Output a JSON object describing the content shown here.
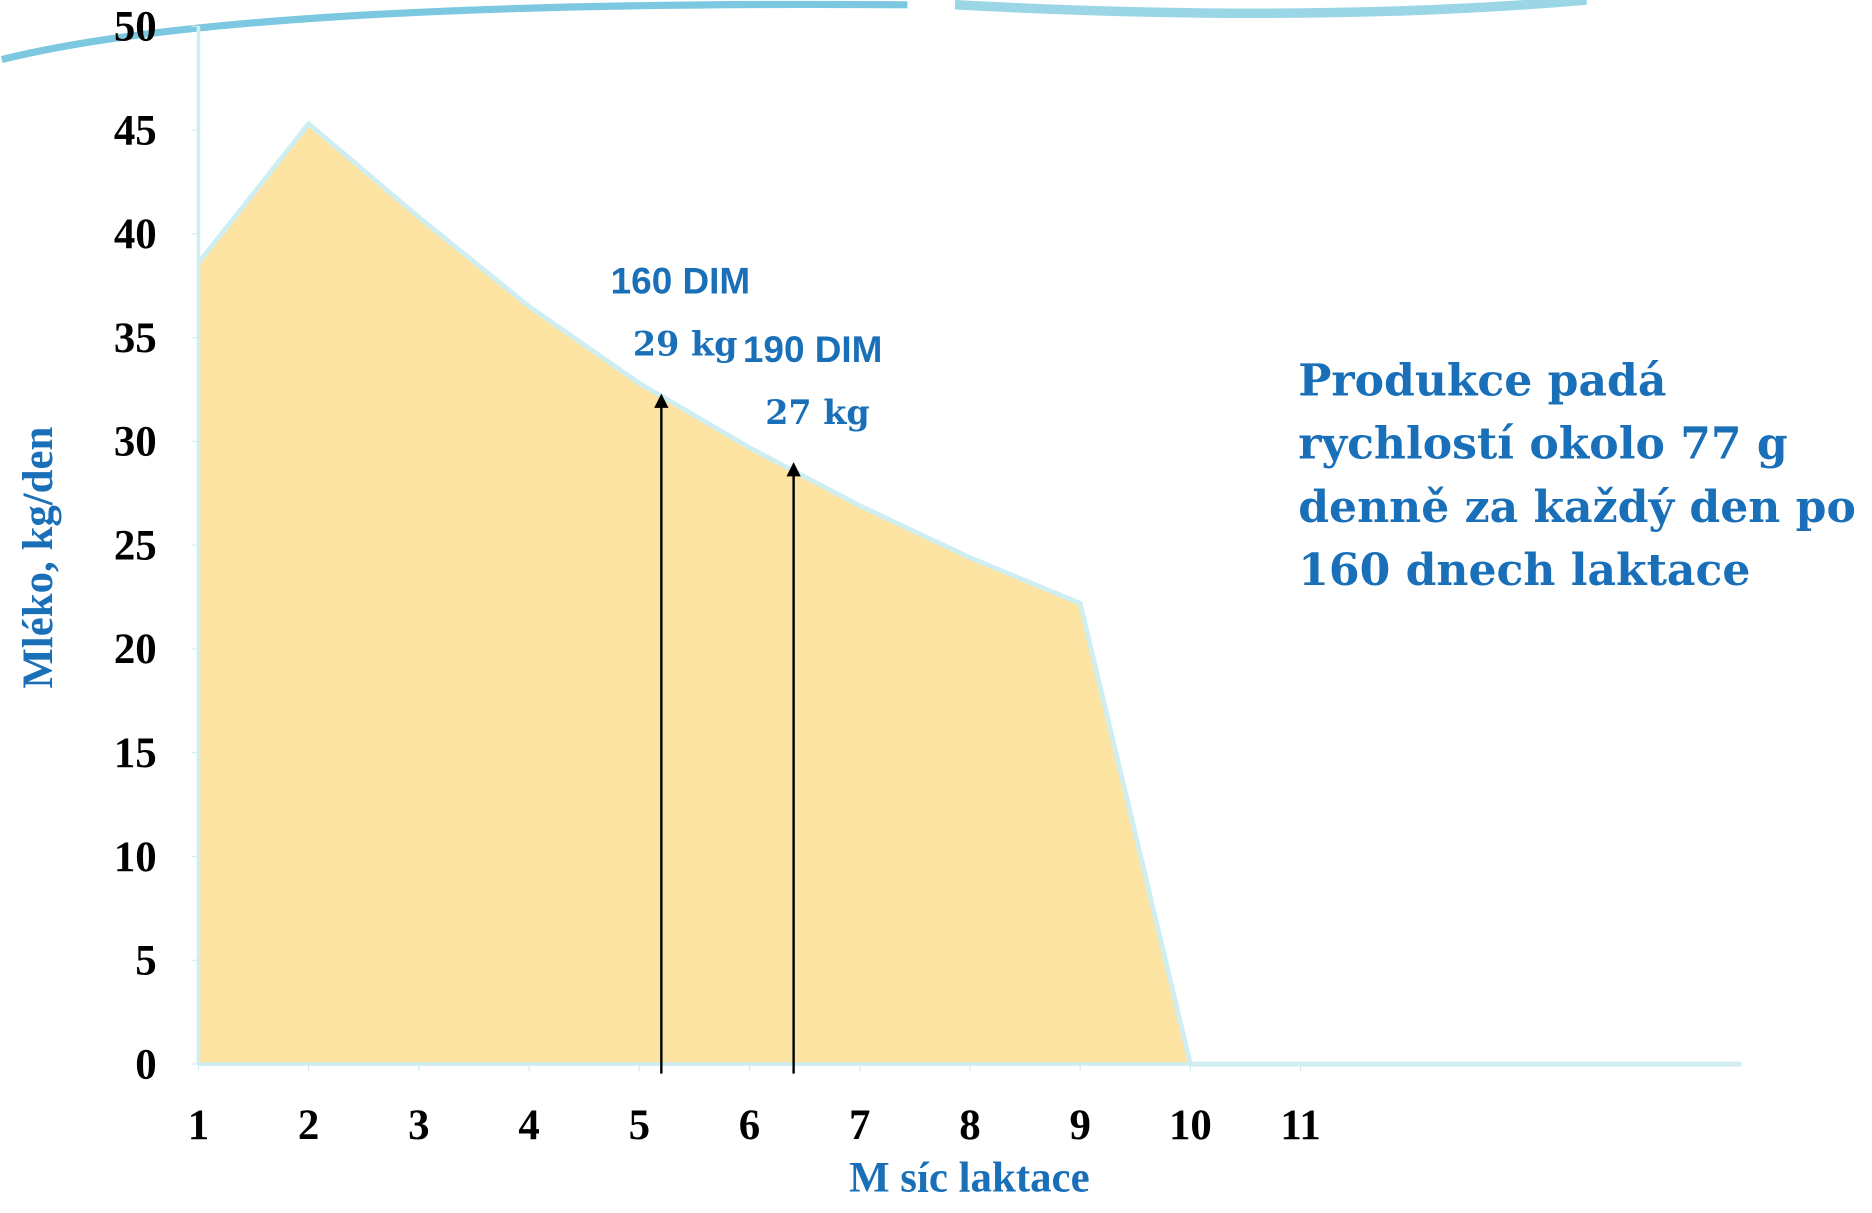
{
  "chart_data": {
    "type": "area",
    "x": [
      1,
      2,
      3,
      4,
      5,
      6,
      7,
      8,
      9,
      10,
      11,
      12,
      13,
      14,
      15
    ],
    "values": [
      38.6,
      45.3,
      40.8,
      36.5,
      32.8,
      29.7,
      26.9,
      24.4,
      22.2,
      0,
      0,
      0,
      0,
      0,
      0
    ],
    "color": "#fde4a2",
    "line_color": "#cfeef2",
    "xlim": [
      1,
      15
    ],
    "xticks": [
      1,
      2,
      3,
      4,
      5,
      6,
      7,
      8,
      9,
      10,
      11
    ],
    "ylim": [
      0,
      50
    ],
    "yticks": [
      0,
      5,
      10,
      15,
      20,
      25,
      30,
      35,
      40,
      45,
      50
    ],
    "xlabel": "M  síc laktace",
    "ylabel": "Mléko, kg/den",
    "arrows": [
      {
        "x": 5.2,
        "y": 32.3,
        "label": "160 DIM",
        "sublabel": "29 kg"
      },
      {
        "x": 6.4,
        "y": 29.0,
        "label": "190 DIM",
        "sublabel": "27 kg"
      }
    ],
    "note_lines": [
      "Produkce padá",
      "rychlostí okolo 77 g",
      "denně za každý den po",
      "160 dnech laktace"
    ]
  }
}
